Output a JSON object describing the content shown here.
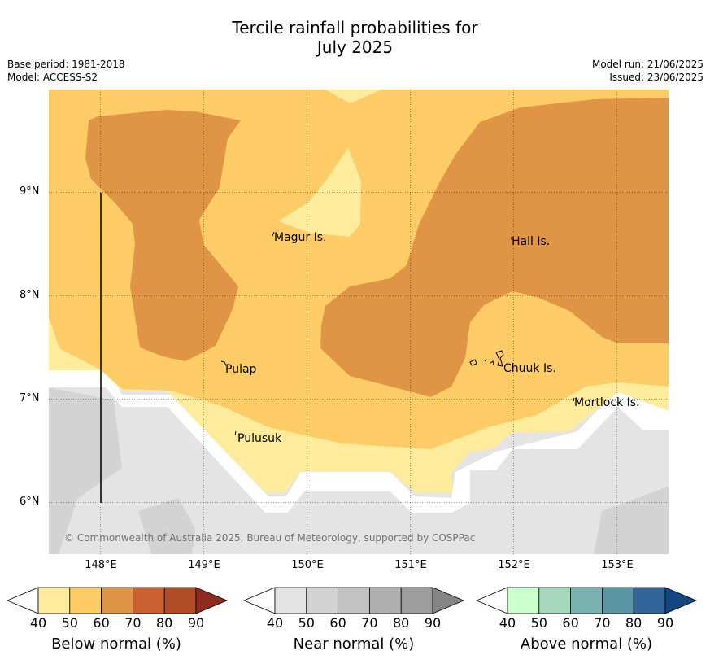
{
  "title_line1": "Tercile rainfall probabilities for",
  "title_line2": "July 2025",
  "base_period": "Base period: 1981-2018",
  "model": "Model: ACCESS-S2",
  "model_run": "Model run: 21/06/2025",
  "issued": "Issued: 23/06/2025",
  "copyright": "© Commonwealth of Australia 2025, Bureau of Meteorology, supported by COSPPac",
  "lon_labels": [
    "148°E",
    "149°E",
    "150°E",
    "151°E",
    "152°E",
    "153°E"
  ],
  "lat_labels": [
    "9°N",
    "8°N",
    "7°N",
    "6°N"
  ],
  "places": [
    "Magur Is.",
    "Hall Is.",
    "Pulap",
    "Chuuk Is.",
    "Mortlock Is.",
    "Pulusuk"
  ],
  "colors": {
    "below": [
      "#ffeb9c",
      "#fecc66",
      "#e09445",
      "#cb6131",
      "#b04c26",
      "#8e2d1f"
    ],
    "near": [
      "#e4e4e4",
      "#d3d3d3",
      "#c2c2c2",
      "#b0b0b0",
      "#9d9d9d",
      "#858585"
    ],
    "above": [
      "#cbffcd",
      "#a6d8be",
      "#7ab3b1",
      "#5a95a4",
      "#32669b",
      "#144781"
    ]
  },
  "colorbars": [
    {
      "title": "Below normal (%)",
      "ticks": [
        "40",
        "50",
        "60",
        "70",
        "80",
        "90"
      ]
    },
    {
      "title": "Near normal (%)",
      "ticks": [
        "40",
        "50",
        "60",
        "70",
        "80",
        "90"
      ]
    },
    {
      "title": "Above normal (%)",
      "ticks": [
        "40",
        "50",
        "60",
        "70",
        "80",
        "90"
      ]
    }
  ]
}
